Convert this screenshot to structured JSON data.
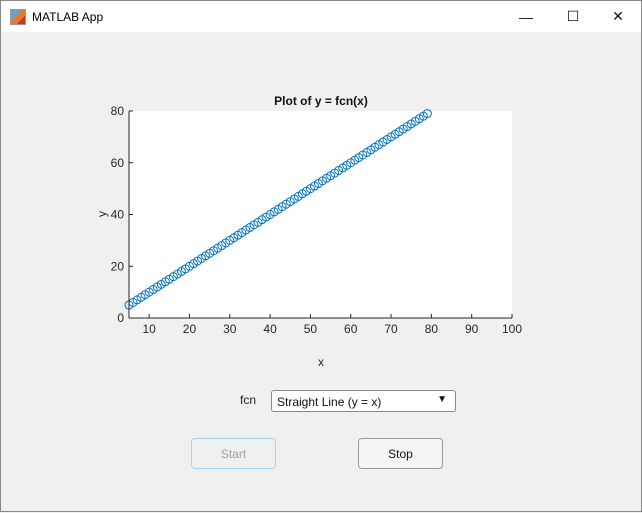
{
  "window": {
    "title": "MATLAB App",
    "controls": {
      "minimize": "—",
      "maximize": "☐",
      "close": "✕"
    }
  },
  "chart_data": {
    "type": "scatter",
    "title": "Plot of y = fcn(x)",
    "xlabel": "x",
    "ylabel": "y",
    "xlim": [
      5,
      100
    ],
    "ylim": [
      0,
      80
    ],
    "xticks": [
      10,
      20,
      30,
      40,
      50,
      60,
      70,
      80,
      90,
      100
    ],
    "yticks": [
      0,
      20,
      40,
      60,
      80
    ],
    "marker": "circle-open",
    "color": "#0072bd",
    "x_range": [
      5,
      79
    ],
    "step": 1,
    "function": "y = x",
    "grid": false
  },
  "controls": {
    "fcn_label": "fcn",
    "fcn_value": "Straight Line (y = x)",
    "start_label": "Start",
    "stop_label": "Stop",
    "start_enabled": false
  }
}
